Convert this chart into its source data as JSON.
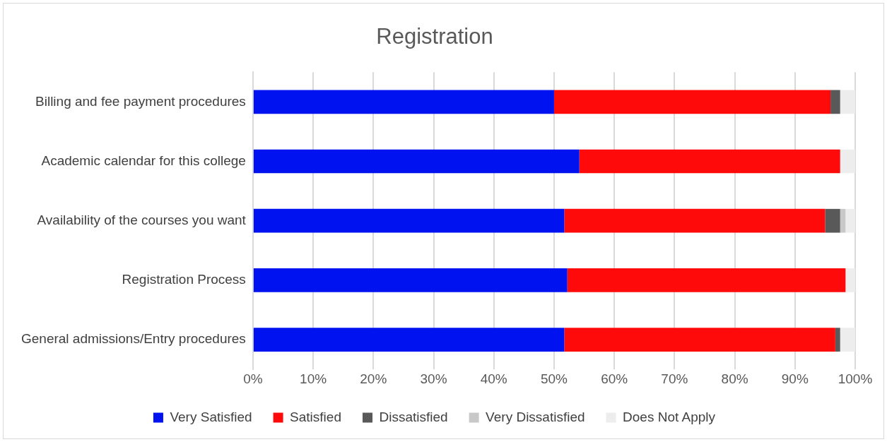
{
  "chart_data": {
    "type": "bar",
    "title": "Registration",
    "orientation": "horizontal",
    "stacked": true,
    "categories": [
      "Billing and fee payment procedures",
      "Academic calendar for this college",
      "Availability of the courses you want",
      "Registration Process",
      "General admissions/Entry procedures"
    ],
    "series": [
      {
        "name": "Very Satisfied",
        "color": "#0012f0",
        "values": [
          50,
          54.2,
          51.7,
          52.2,
          51.7
        ]
      },
      {
        "name": "Satisfied",
        "color": "#ff0a0a",
        "values": [
          45.9,
          43.3,
          43.3,
          46.2,
          45.0
        ]
      },
      {
        "name": "Dissatisfied",
        "color": "#595959",
        "values": [
          1.6,
          0,
          2.5,
          0,
          0.8
        ]
      },
      {
        "name": "Very Dissatisfied",
        "color": "#c8c8c8",
        "values": [
          0,
          0,
          0.9,
          0,
          0
        ]
      },
      {
        "name": "Does Not Apply",
        "color": "#ededed",
        "values": [
          2.5,
          2.5,
          1.6,
          1.6,
          2.5
        ]
      }
    ],
    "xlim": [
      0,
      100
    ],
    "xticks": [
      {
        "value": 0,
        "label": "0%"
      },
      {
        "value": 10,
        "label": "10%"
      },
      {
        "value": 20,
        "label": "20%"
      },
      {
        "value": 30,
        "label": "30%"
      },
      {
        "value": 40,
        "label": "40%"
      },
      {
        "value": 50,
        "label": "50%"
      },
      {
        "value": 60,
        "label": "60%"
      },
      {
        "value": 70,
        "label": "70%"
      },
      {
        "value": 80,
        "label": "80%"
      },
      {
        "value": 90,
        "label": "90%"
      },
      {
        "value": 100,
        "label": "100%"
      }
    ],
    "grid": "x",
    "legend": "bottom"
  }
}
